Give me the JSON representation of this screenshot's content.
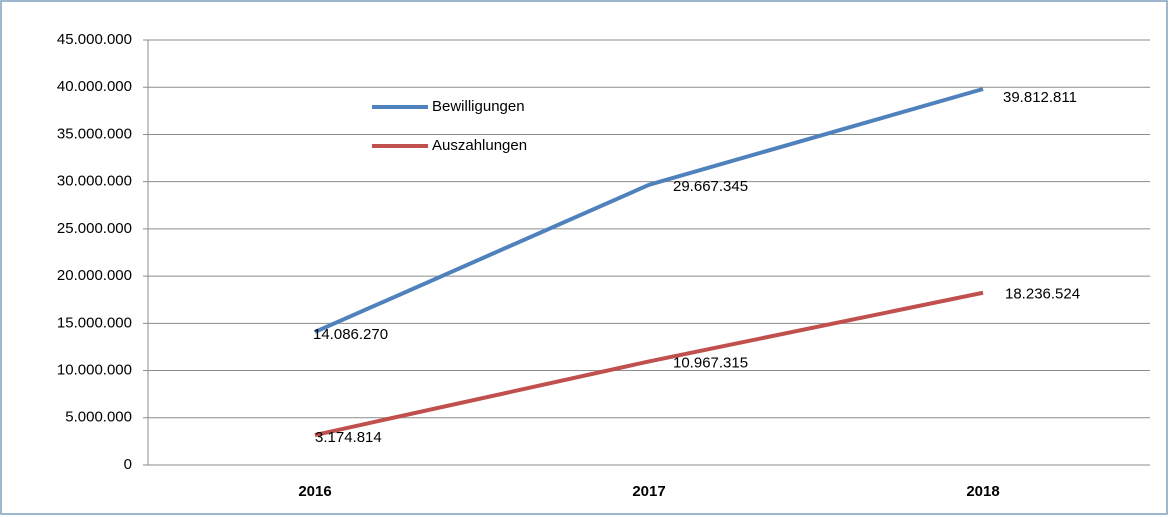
{
  "chart_data": {
    "type": "line",
    "categories": [
      "2016",
      "2017",
      "2018"
    ],
    "series": [
      {
        "name": "Bewilligungen",
        "color": "#4f81bd",
        "values": [
          14086270,
          29667345,
          39812811
        ],
        "value_labels": [
          "14.086.270",
          "29.667.345",
          "39.812.811"
        ]
      },
      {
        "name": "Auszahlungen",
        "color": "#c0504d",
        "values": [
          3174814,
          10967315,
          18236524
        ],
        "value_labels": [
          "3.174.814",
          "10.967.315",
          "18.236.524"
        ]
      }
    ],
    "ylim": [
      0,
      45000000
    ],
    "yticks": [
      0,
      {
        "value": 5000000,
        "label": "5.000.000"
      },
      {
        "value": 10000000,
        "label": "10.000.000"
      },
      {
        "value": 15000000,
        "label": "15.000.000"
      },
      {
        "value": 20000000,
        "label": "20.000.000"
      },
      {
        "value": 25000000,
        "label": "25.000.000"
      },
      {
        "value": 30000000,
        "label": "30.000.000"
      },
      {
        "value": 35000000,
        "label": "35.000.000"
      },
      {
        "value": 40000000,
        "label": "40.000.000"
      },
      {
        "value": 45000000,
        "label": "45.000.000"
      }
    ],
    "grid": true
  }
}
